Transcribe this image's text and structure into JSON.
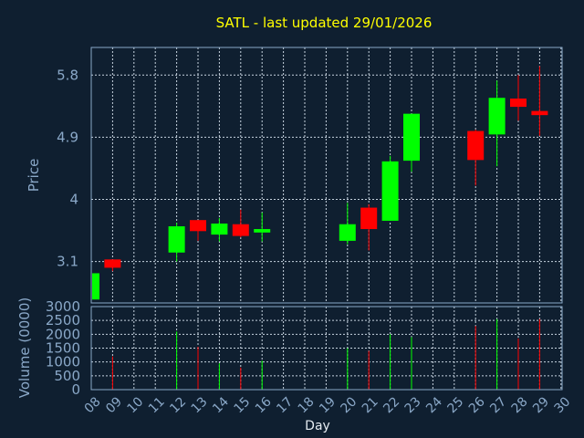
{
  "chart_data": {
    "type": "candlestick",
    "title": "SATL - last updated 29/01/2026",
    "xlabel": "Day",
    "price_panel": {
      "ylabel": "Price",
      "yticks": [
        "3.1",
        "4",
        "4.9",
        "5.8"
      ],
      "ylim": [
        2.5,
        6.2
      ],
      "grid": true
    },
    "volume_panel": {
      "ylabel": "Volume (0000)",
      "yticks": [
        "0",
        "500",
        "1000",
        "1500",
        "2000",
        "2500",
        "3000"
      ],
      "ylim": [
        0,
        3000
      ],
      "grid": true
    },
    "x_tick_labels": [
      "08",
      "09",
      "10",
      "11",
      "12",
      "13",
      "14",
      "15",
      "16",
      "17",
      "18",
      "19",
      "20",
      "21",
      "22",
      "23",
      "24",
      "25",
      "26",
      "27",
      "28",
      "29",
      "30"
    ],
    "up_color": "#00ff00",
    "down_color": "#ff0000",
    "candles": [
      {
        "day": "08",
        "open": 2.55,
        "high": 2.95,
        "low": 2.55,
        "close": 2.93
      },
      {
        "day": "09",
        "open": 3.13,
        "high": 3.13,
        "low": 2.96,
        "close": 3.01
      },
      {
        "day": "12",
        "open": 3.23,
        "high": 3.66,
        "low": 3.1,
        "close": 3.61
      },
      {
        "day": "13",
        "open": 3.7,
        "high": 3.7,
        "low": 3.4,
        "close": 3.54
      },
      {
        "day": "14",
        "open": 3.49,
        "high": 3.73,
        "low": 3.39,
        "close": 3.65
      },
      {
        "day": "15",
        "open": 3.64,
        "high": 3.85,
        "low": 3.45,
        "close": 3.47
      },
      {
        "day": "16",
        "open": 3.52,
        "high": 3.81,
        "low": 3.39,
        "close": 3.57
      },
      {
        "day": "20",
        "open": 3.4,
        "high": 3.95,
        "low": 3.35,
        "close": 3.64
      },
      {
        "day": "21",
        "open": 3.88,
        "high": 3.93,
        "low": 3.26,
        "close": 3.57
      },
      {
        "day": "22",
        "open": 3.69,
        "high": 4.63,
        "low": 3.69,
        "close": 4.55
      },
      {
        "day": "23",
        "open": 4.56,
        "high": 5.24,
        "low": 4.4,
        "close": 5.24
      },
      {
        "day": "26",
        "open": 4.99,
        "high": 5.01,
        "low": 4.2,
        "close": 4.57
      },
      {
        "day": "27",
        "open": 4.94,
        "high": 5.72,
        "low": 4.48,
        "close": 5.47
      },
      {
        "day": "28",
        "open": 5.46,
        "high": 5.8,
        "low": 5.14,
        "close": 5.34
      },
      {
        "day": "29",
        "open": 5.28,
        "high": 5.93,
        "low": 4.92,
        "close": 5.22
      }
    ],
    "volume": [
      {
        "day": "08",
        "value": 0,
        "direction": "up"
      },
      {
        "day": "09",
        "value": 1200,
        "direction": "down"
      },
      {
        "day": "12",
        "value": 2100,
        "direction": "up"
      },
      {
        "day": "13",
        "value": 1550,
        "direction": "down"
      },
      {
        "day": "14",
        "value": 950,
        "direction": "up"
      },
      {
        "day": "15",
        "value": 800,
        "direction": "down"
      },
      {
        "day": "16",
        "value": 1050,
        "direction": "up"
      },
      {
        "day": "20",
        "value": 1500,
        "direction": "up"
      },
      {
        "day": "21",
        "value": 1400,
        "direction": "down"
      },
      {
        "day": "22",
        "value": 2000,
        "direction": "up"
      },
      {
        "day": "23",
        "value": 1900,
        "direction": "up"
      },
      {
        "day": "26",
        "value": 2300,
        "direction": "down"
      },
      {
        "day": "27",
        "value": 2550,
        "direction": "up"
      },
      {
        "day": "28",
        "value": 1850,
        "direction": "down"
      },
      {
        "day": "29",
        "value": 2550,
        "direction": "down"
      }
    ]
  }
}
